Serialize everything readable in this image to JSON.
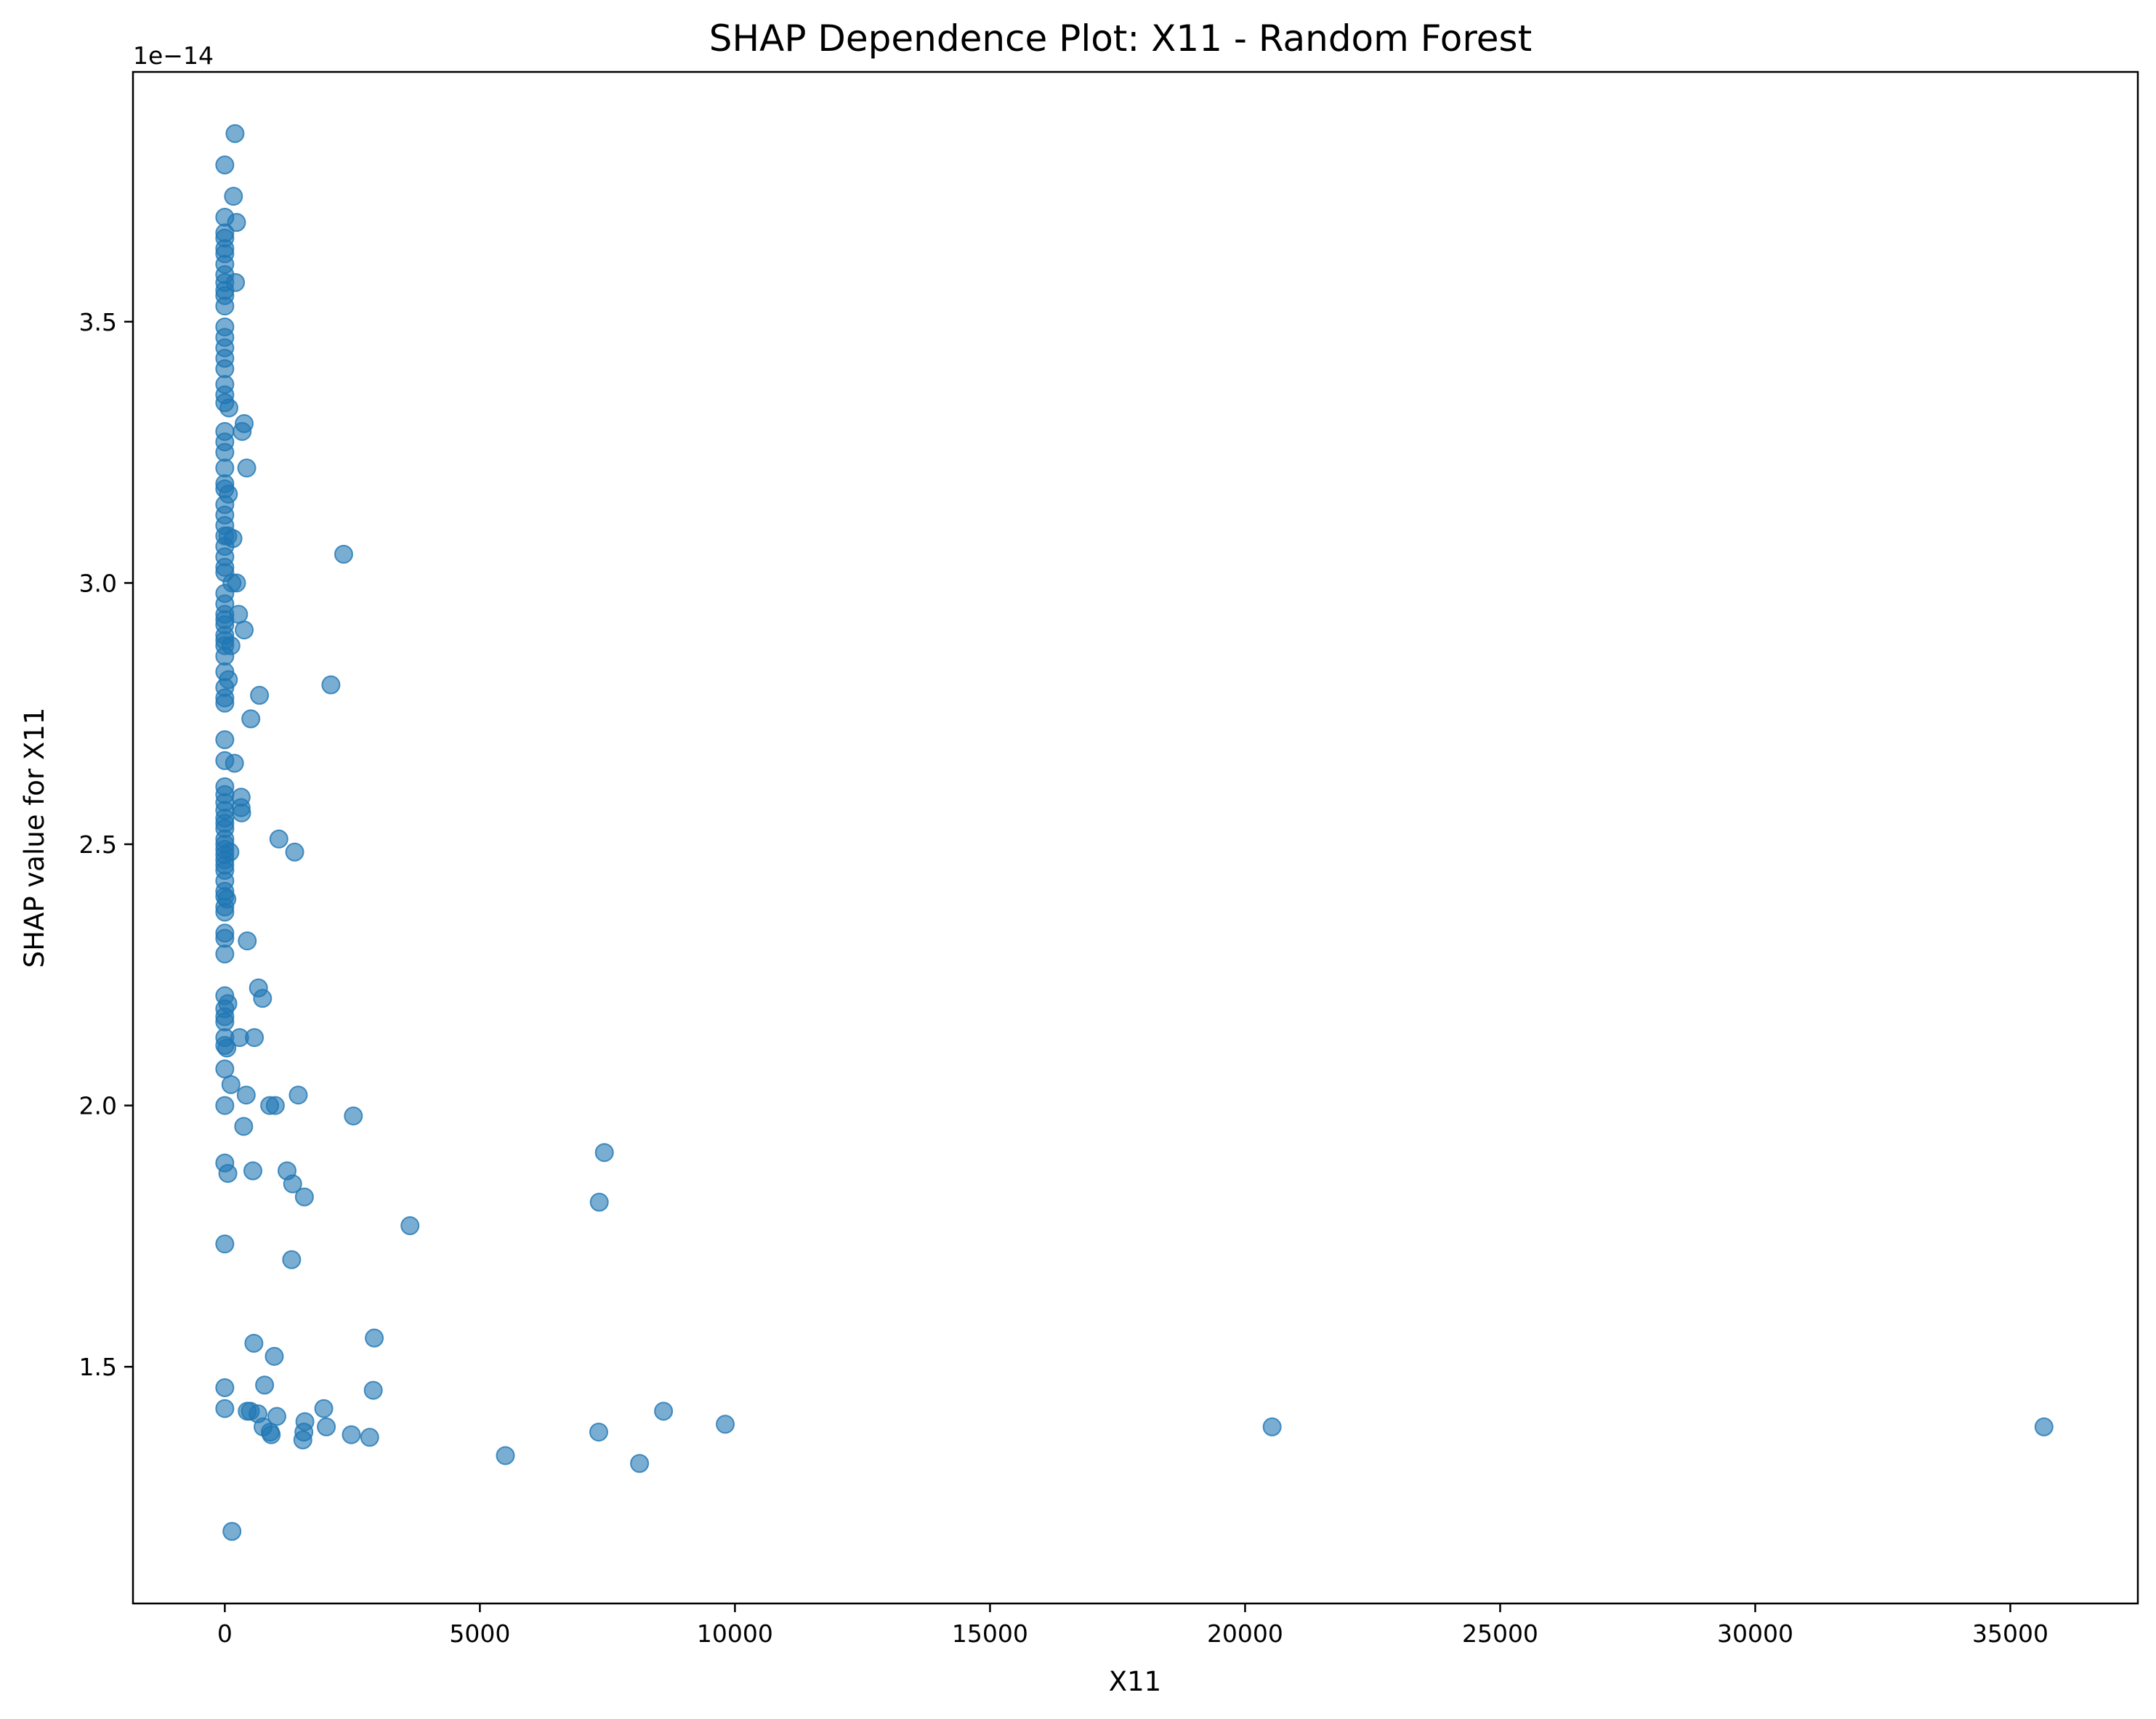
{
  "chart_data": {
    "type": "scatter",
    "title": "SHAP Dependence Plot: X11 - Random Forest",
    "xlabel": "X11",
    "ylabel": "SHAP value for X11",
    "y_offset_label": "1e−14",
    "xlim": [
      -1800,
      37500
    ],
    "ylim": [
      1.047,
      3.978
    ],
    "x_ticks": [
      0,
      5000,
      10000,
      15000,
      20000,
      25000,
      30000,
      35000
    ],
    "x_tick_labels": [
      "0",
      "5000",
      "10000",
      "15000",
      "20000",
      "25000",
      "30000",
      "35000"
    ],
    "y_ticks": [
      1.5,
      2.0,
      2.5,
      3.0,
      3.5
    ],
    "y_tick_labels": [
      "1.5",
      "2.0",
      "2.5",
      "3.0",
      "3.5"
    ],
    "grid": false,
    "marker_color": "#1f77b4",
    "marker_opacity": 0.6,
    "points": [
      [
        200,
        3.86
      ],
      [
        0,
        3.8
      ],
      [
        170,
        3.74
      ],
      [
        0,
        3.7
      ],
      [
        230,
        3.69
      ],
      [
        0,
        3.67
      ],
      [
        0,
        3.66
      ],
      [
        0,
        3.64
      ],
      [
        0,
        3.63
      ],
      [
        0,
        3.61
      ],
      [
        0,
        3.59
      ],
      [
        0,
        3.575
      ],
      [
        210,
        3.575
      ],
      [
        0,
        3.56
      ],
      [
        0,
        3.55
      ],
      [
        0,
        3.53
      ],
      [
        0,
        3.49
      ],
      [
        0,
        3.47
      ],
      [
        0,
        3.45
      ],
      [
        0,
        3.43
      ],
      [
        0,
        3.41
      ],
      [
        0,
        3.38
      ],
      [
        0,
        3.36
      ],
      [
        0,
        3.345
      ],
      [
        80,
        3.335
      ],
      [
        0,
        3.29
      ],
      [
        380,
        3.305
      ],
      [
        340,
        3.29
      ],
      [
        0,
        3.27
      ],
      [
        0,
        3.25
      ],
      [
        430,
        3.22
      ],
      [
        0,
        3.22
      ],
      [
        0,
        3.19
      ],
      [
        0,
        3.18
      ],
      [
        70,
        3.17
      ],
      [
        0,
        3.15
      ],
      [
        0,
        3.13
      ],
      [
        0,
        3.11
      ],
      [
        0,
        3.09
      ],
      [
        60,
        3.09
      ],
      [
        160,
        3.085
      ],
      [
        0,
        3.07
      ],
      [
        0,
        3.05
      ],
      [
        0,
        3.03
      ],
      [
        0,
        3.02
      ],
      [
        2330,
        3.055
      ],
      [
        140,
        3.0
      ],
      [
        230,
        3.0
      ],
      [
        0,
        2.98
      ],
      [
        0,
        2.96
      ],
      [
        0,
        2.94
      ],
      [
        0,
        2.93
      ],
      [
        270,
        2.94
      ],
      [
        0,
        2.92
      ],
      [
        0,
        2.9
      ],
      [
        380,
        2.91
      ],
      [
        0,
        2.89
      ],
      [
        0,
        2.88
      ],
      [
        120,
        2.88
      ],
      [
        0,
        2.86
      ],
      [
        0,
        2.83
      ],
      [
        70,
        2.815
      ],
      [
        0,
        2.8
      ],
      [
        0,
        2.78
      ],
      [
        0,
        2.77
      ],
      [
        2080,
        2.805
      ],
      [
        680,
        2.785
      ],
      [
        510,
        2.74
      ],
      [
        0,
        2.7
      ],
      [
        0,
        2.66
      ],
      [
        190,
        2.655
      ],
      [
        0,
        2.61
      ],
      [
        0,
        2.595
      ],
      [
        320,
        2.59
      ],
      [
        0,
        2.58
      ],
      [
        0,
        2.565
      ],
      [
        320,
        2.57
      ],
      [
        330,
        2.56
      ],
      [
        0,
        2.55
      ],
      [
        0,
        2.54
      ],
      [
        0,
        2.53
      ],
      [
        1060,
        2.51
      ],
      [
        0,
        2.51
      ],
      [
        0,
        2.5
      ],
      [
        0,
        2.49
      ],
      [
        100,
        2.485
      ],
      [
        1370,
        2.485
      ],
      [
        0,
        2.48
      ],
      [
        0,
        2.47
      ],
      [
        0,
        2.46
      ],
      [
        0,
        2.45
      ],
      [
        0,
        2.43
      ],
      [
        0,
        2.41
      ],
      [
        0,
        2.4
      ],
      [
        40,
        2.395
      ],
      [
        0,
        2.38
      ],
      [
        0,
        2.37
      ],
      [
        0,
        2.33
      ],
      [
        0,
        2.32
      ],
      [
        440,
        2.315
      ],
      [
        0,
        2.29
      ],
      [
        660,
        2.225
      ],
      [
        0,
        2.21
      ],
      [
        740,
        2.205
      ],
      [
        60,
        2.195
      ],
      [
        0,
        2.185
      ],
      [
        0,
        2.17
      ],
      [
        0,
        2.16
      ],
      [
        290,
        2.13
      ],
      [
        0,
        2.13
      ],
      [
        580,
        2.13
      ],
      [
        0,
        2.115
      ],
      [
        40,
        2.11
      ],
      [
        0,
        2.07
      ],
      [
        120,
        2.04
      ],
      [
        420,
        2.02
      ],
      [
        1440,
        2.02
      ],
      [
        880,
        2.0
      ],
      [
        990,
        2.0
      ],
      [
        0,
        2.0
      ],
      [
        2520,
        1.98
      ],
      [
        370,
        1.96
      ],
      [
        0,
        1.89
      ],
      [
        7440,
        1.91
      ],
      [
        60,
        1.87
      ],
      [
        550,
        1.875
      ],
      [
        1220,
        1.875
      ],
      [
        1330,
        1.85
      ],
      [
        1560,
        1.825
      ],
      [
        7340,
        1.815
      ],
      [
        3630,
        1.77
      ],
      [
        0,
        1.735
      ],
      [
        1310,
        1.705
      ],
      [
        2930,
        1.555
      ],
      [
        570,
        1.545
      ],
      [
        970,
        1.52
      ],
      [
        780,
        1.465
      ],
      [
        0,
        1.46
      ],
      [
        2910,
        1.455
      ],
      [
        0,
        1.42
      ],
      [
        440,
        1.415
      ],
      [
        500,
        1.415
      ],
      [
        650,
        1.41
      ],
      [
        1020,
        1.405
      ],
      [
        1940,
        1.42
      ],
      [
        8600,
        1.415
      ],
      [
        1570,
        1.395
      ],
      [
        9810,
        1.39
      ],
      [
        750,
        1.385
      ],
      [
        1990,
        1.385
      ],
      [
        20530,
        1.385
      ],
      [
        35660,
        1.385
      ],
      [
        890,
        1.375
      ],
      [
        910,
        1.37
      ],
      [
        1550,
        1.375
      ],
      [
        7330,
        1.375
      ],
      [
        2480,
        1.37
      ],
      [
        2840,
        1.365
      ],
      [
        1530,
        1.36
      ],
      [
        5500,
        1.33
      ],
      [
        8130,
        1.315
      ],
      [
        140,
        1.185
      ]
    ]
  }
}
